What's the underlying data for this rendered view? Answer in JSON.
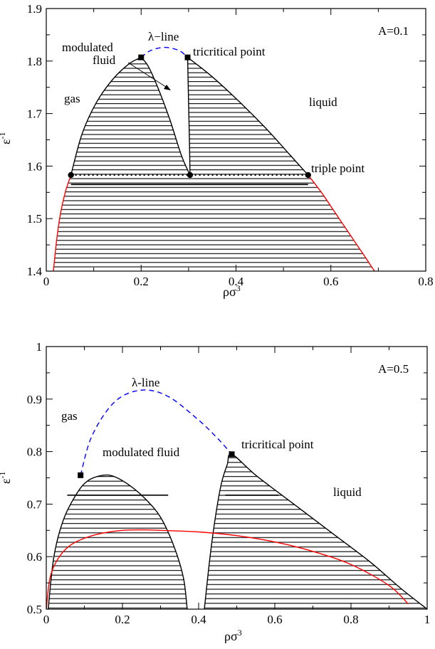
{
  "chart_data": [
    {
      "type": "line",
      "annotation_corner": "A=0.1",
      "xlabel_base": "ρσ",
      "xlabel_sup": "3",
      "ylabel_base": "ε",
      "ylabel_sup": "-1",
      "xlim": [
        0,
        0.8
      ],
      "ylim": [
        1.4,
        1.9
      ],
      "xticks": [
        "0",
        "0.2",
        "0.4",
        "0.6",
        "0.8"
      ],
      "yticks": [
        "1.4",
        "1.5",
        "1.6",
        "1.7",
        "1.8",
        "1.9"
      ],
      "labels": {
        "gas": "gas",
        "liquid": "liquid",
        "modulated_1": "modulated",
        "modulated_2": "fluid",
        "lambda_line": "λ−line",
        "tricritical": "tricritical point",
        "triple": "triple point"
      },
      "series": [
        {
          "role": "coexistence-left-lower",
          "color": "#ff0000",
          "x": [
            0.015,
            0.022,
            0.03,
            0.04,
            0.052
          ],
          "y": [
            1.4,
            1.46,
            1.51,
            1.55,
            1.583
          ]
        },
        {
          "role": "coexistence-right-lower",
          "color": "#ff0000",
          "x": [
            0.552,
            0.58,
            0.61,
            0.64,
            0.67,
            0.692
          ],
          "y": [
            1.583,
            1.55,
            1.51,
            1.47,
            1.43,
            1.4
          ]
        },
        {
          "role": "gas-modulated-boundary",
          "color": "#000000",
          "x": [
            0.052,
            0.075,
            0.105,
            0.14,
            0.175,
            0.2
          ],
          "y": [
            1.583,
            1.66,
            1.72,
            1.765,
            1.795,
            1.807
          ]
        },
        {
          "role": "modulated-inner-left",
          "color": "#000000",
          "x": [
            0.2,
            0.215,
            0.235,
            0.26,
            0.285,
            0.303
          ],
          "y": [
            1.807,
            1.79,
            1.75,
            1.69,
            1.62,
            1.583
          ]
        },
        {
          "role": "modulated-inner-right",
          "color": "#000000",
          "x": [
            0.298,
            0.3,
            0.302,
            0.303
          ],
          "y": [
            1.807,
            1.72,
            1.64,
            1.583
          ]
        },
        {
          "role": "liquid-boundary",
          "color": "#000000",
          "x": [
            0.298,
            0.35,
            0.41,
            0.465,
            0.515,
            0.552
          ],
          "y": [
            1.807,
            1.77,
            1.72,
            1.67,
            1.62,
            1.583
          ]
        },
        {
          "role": "lambda-line",
          "color": "#0000ff",
          "dashed": true,
          "x": [
            0.2,
            0.22,
            0.25,
            0.28,
            0.298
          ],
          "y": [
            1.807,
            1.82,
            1.826,
            1.82,
            1.807
          ]
        },
        {
          "role": "triple-line",
          "color": "#000000",
          "dotted": true,
          "x": [
            0.052,
            0.552
          ],
          "y": [
            1.583,
            1.583
          ]
        }
      ],
      "markers_square": [
        {
          "x": 0.2,
          "y": 1.807
        },
        {
          "x": 0.298,
          "y": 1.807
        }
      ],
      "markers_circle": [
        {
          "x": 0.052,
          "y": 1.583
        },
        {
          "x": 0.303,
          "y": 1.583
        },
        {
          "x": 0.552,
          "y": 1.583
        }
      ]
    },
    {
      "type": "line",
      "annotation_corner": "A=0.5",
      "xlabel_base": "ρσ",
      "xlabel_sup": "3",
      "ylabel_base": "ε",
      "ylabel_sup": "-1",
      "xlim": [
        0,
        1
      ],
      "ylim": [
        0.5,
        1.0
      ],
      "xticks": [
        "0",
        "0.2",
        "0.4",
        "0.6",
        "0.8",
        "1"
      ],
      "yticks": [
        "0.5",
        "0.6",
        "0.7",
        "0.8",
        "0.9",
        "1"
      ],
      "labels": {
        "gas": "gas",
        "liquid": "liquid",
        "modulated": "modulated fluid",
        "lambda_line": "λ-line",
        "tricritical": "tricritical point"
      },
      "series": [
        {
          "role": "left-dome",
          "color": "#000000",
          "x": [
            0.005,
            0.02,
            0.045,
            0.08,
            0.11,
            0.15,
            0.18,
            0.22,
            0.26,
            0.3,
            0.335,
            0.36,
            0.37
          ],
          "y": [
            0.5,
            0.6,
            0.67,
            0.72,
            0.745,
            0.755,
            0.752,
            0.735,
            0.71,
            0.675,
            0.62,
            0.56,
            0.5
          ]
        },
        {
          "role": "right-dome",
          "color": "#000000",
          "x": [
            0.415,
            0.43,
            0.445,
            0.46,
            0.475,
            0.487,
            0.55,
            0.65,
            0.75,
            0.85,
            0.93,
            1.0
          ],
          "y": [
            0.5,
            0.6,
            0.68,
            0.74,
            0.775,
            0.795,
            0.755,
            0.7,
            0.645,
            0.59,
            0.54,
            0.5
          ]
        },
        {
          "role": "lambda-line",
          "color": "#0000ff",
          "dashed": true,
          "x": [
            0.09,
            0.12,
            0.18,
            0.25,
            0.32,
            0.4,
            0.45,
            0.487
          ],
          "y": [
            0.755,
            0.83,
            0.895,
            0.917,
            0.905,
            0.86,
            0.825,
            0.795
          ]
        },
        {
          "role": "coexistence",
          "color": "#ff0000",
          "x": [
            0.0,
            0.01,
            0.03,
            0.06,
            0.1,
            0.15,
            0.2,
            0.25,
            0.3,
            0.4,
            0.5,
            0.6,
            0.7,
            0.8,
            0.9,
            0.95
          ],
          "y": [
            0.5,
            0.56,
            0.595,
            0.62,
            0.635,
            0.645,
            0.65,
            0.651,
            0.65,
            0.647,
            0.64,
            0.628,
            0.61,
            0.585,
            0.545,
            0.51
          ]
        }
      ],
      "markers_square": [
        {
          "x": 0.09,
          "y": 0.755
        },
        {
          "x": 0.487,
          "y": 0.795
        }
      ]
    }
  ]
}
